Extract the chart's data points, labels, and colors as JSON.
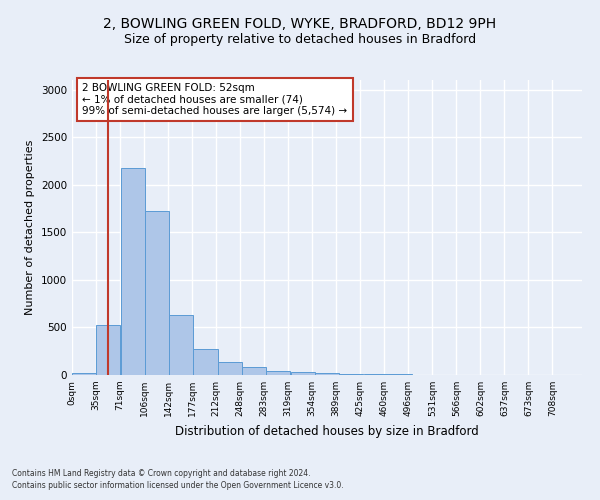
{
  "title1": "2, BOWLING GREEN FOLD, WYKE, BRADFORD, BD12 9PH",
  "title2": "Size of property relative to detached houses in Bradford",
  "xlabel": "Distribution of detached houses by size in Bradford",
  "ylabel": "Number of detached properties",
  "annotation_line1": "2 BOWLING GREEN FOLD: 52sqm",
  "annotation_line2": "← 1% of detached houses are smaller (74)",
  "annotation_line3": "99% of semi-detached houses are larger (5,574) →",
  "footer1": "Contains HM Land Registry data © Crown copyright and database right 2024.",
  "footer2": "Contains public sector information licensed under the Open Government Licence v3.0.",
  "property_size": 52,
  "bar_left_edges": [
    0,
    35,
    71,
    106,
    142,
    177,
    212,
    248,
    283,
    319,
    354,
    389,
    425,
    460,
    496,
    531,
    566,
    602,
    637,
    673
  ],
  "bar_heights": [
    20,
    530,
    2175,
    1720,
    635,
    270,
    140,
    80,
    45,
    30,
    20,
    15,
    10,
    8,
    5,
    3,
    2,
    1,
    1,
    0
  ],
  "bin_width": 35,
  "bar_color": "#aec6e8",
  "bar_edge_color": "#5b9bd5",
  "vline_color": "#c0392b",
  "vline_x": 52,
  "ylim": [
    0,
    3100
  ],
  "yticks": [
    0,
    500,
    1000,
    1500,
    2000,
    2500,
    3000
  ],
  "tick_labels": [
    "0sqm",
    "35sqm",
    "71sqm",
    "106sqm",
    "142sqm",
    "177sqm",
    "212sqm",
    "248sqm",
    "283sqm",
    "319sqm",
    "354sqm",
    "389sqm",
    "425sqm",
    "460sqm",
    "496sqm",
    "531sqm",
    "566sqm",
    "602sqm",
    "637sqm",
    "673sqm",
    "708sqm"
  ],
  "background_color": "#e8eef8",
  "plot_bg_color": "#e8eef8",
  "grid_color": "#ffffff",
  "title1_fontsize": 10,
  "title2_fontsize": 9,
  "xlabel_fontsize": 8.5,
  "ylabel_fontsize": 8,
  "annotation_box_color": "#ffffff",
  "annotation_box_edge": "#c0392b",
  "annotation_fontsize": 7.5
}
